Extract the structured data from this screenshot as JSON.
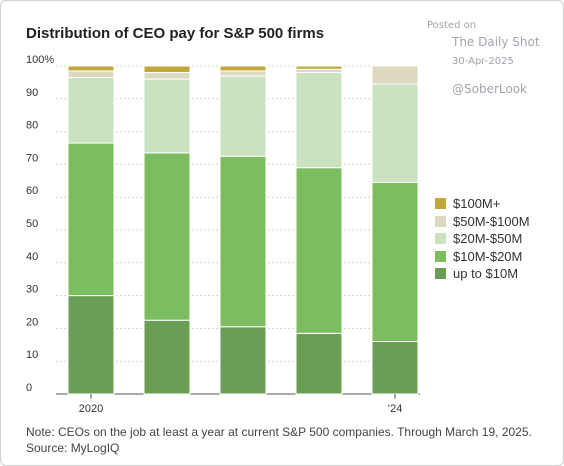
{
  "header": {
    "title": "Distribution of CEO pay for S&P 500 firms"
  },
  "watermark": {
    "posted": "Posted on",
    "site": "The Daily Shot",
    "date": "30-Apr-2025",
    "handle": "@SoberLook"
  },
  "footnote": {
    "note": "Note: CEOs on the job at least a year at current S&P 500 companies. Through March 19, 2025.",
    "source": "Source: MyLogIQ"
  },
  "chart_data": {
    "type": "bar",
    "stacked": true,
    "categories": [
      "2020",
      "",
      "",
      "",
      "’24"
    ],
    "ylim": [
      0,
      100
    ],
    "yticks": [
      0,
      10,
      20,
      30,
      40,
      50,
      60,
      70,
      80,
      90,
      100
    ],
    "ytick_labels": [
      "0",
      "10",
      "20",
      "30",
      "40",
      "50",
      "60",
      "70",
      "80",
      "90",
      "100%"
    ],
    "series": [
      {
        "name": "up to $10M",
        "color": "#6a9e55",
        "values": [
          30,
          22.5,
          20.5,
          18.5,
          16
        ]
      },
      {
        "name": "$10M-$20M",
        "color": "#7bbd5f",
        "values": [
          46.5,
          51,
          52,
          50.5,
          48.5
        ]
      },
      {
        "name": "$20M-$50M",
        "color": "#cbe2c0",
        "values": [
          20,
          22.5,
          24.5,
          29,
          30
        ]
      },
      {
        "name": "$50M-$100M",
        "color": "#ddd8c0",
        "values": [
          2,
          2,
          1.5,
          1,
          5.5
        ]
      },
      {
        "name": "$100M+",
        "color": "#c2a73a",
        "values": [
          1.5,
          2,
          1.5,
          1,
          0
        ]
      }
    ],
    "legend_order": [
      4,
      3,
      2,
      1,
      0
    ],
    "legend_position": "right",
    "grid": true
  }
}
